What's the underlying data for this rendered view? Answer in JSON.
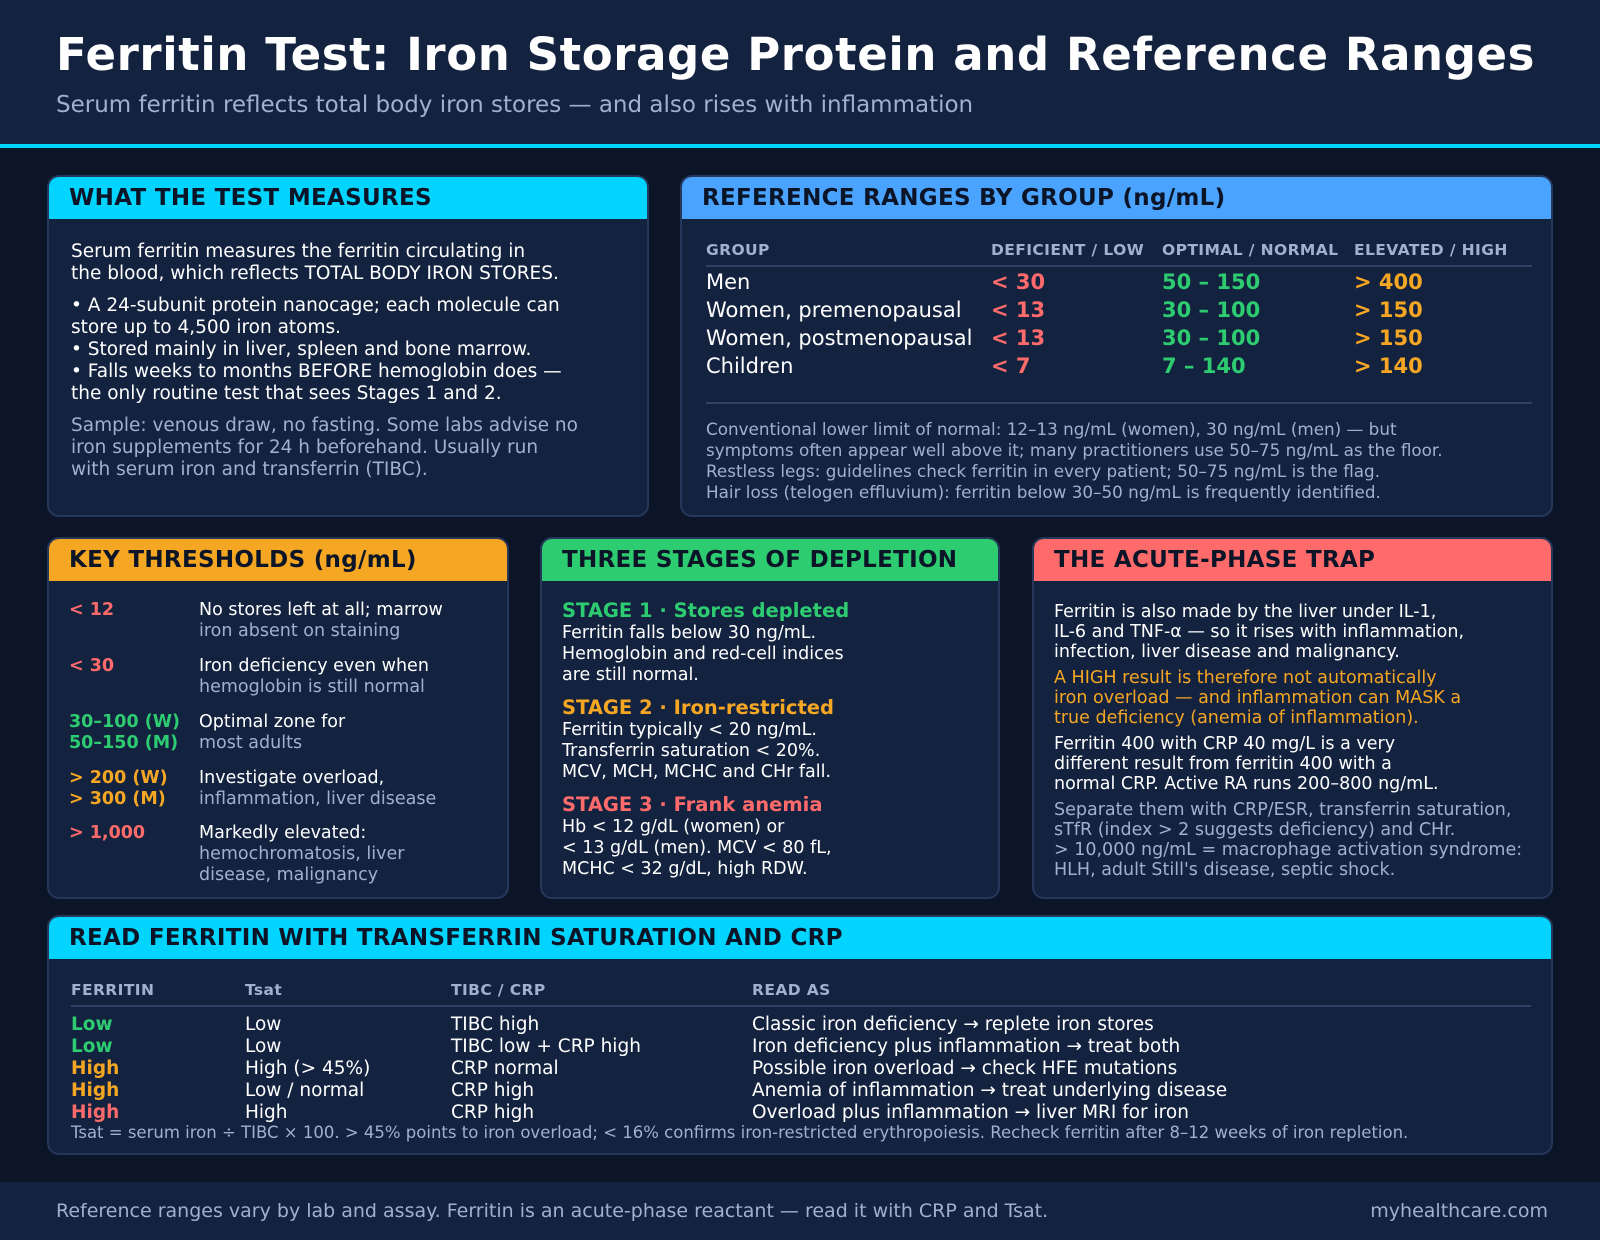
{
  "header": {
    "title": "Ferritin Test: Iron Storage Protein and Reference Ranges",
    "subtitle": "Serum ferritin reflects total body iron stores — and also rises with inflammation"
  },
  "measures": {
    "heading": "WHAT THE TEST MEASURES",
    "intro_1": "Serum ferritin measures the ferritin circulating in",
    "intro_2": "the blood, which reflects TOTAL BODY IRON STORES.",
    "bullets": [
      "• A 24-subunit protein nanocage; each molecule can",
      "store up to 4,500 iron atoms.",
      "• Stored mainly in liver, spleen and bone marrow.",
      "• Falls weeks to months BEFORE hemoglobin does —",
      "the only routine test that sees Stages 1 and 2."
    ],
    "sample": [
      "Sample: venous draw, no fasting. Some labs advise no",
      "iron supplements for 24 h beforehand. Usually run",
      "with serum iron and transferrin (TIBC)."
    ]
  },
  "ranges": {
    "heading": "REFERENCE RANGES BY GROUP (ng/mL)",
    "columns": [
      "GROUP",
      "DEFICIENT / LOW",
      "OPTIMAL / NORMAL",
      "ELEVATED / HIGH"
    ],
    "rows": [
      {
        "group": "Men",
        "low": "< 30",
        "normal": "50 – 150",
        "high": "> 400"
      },
      {
        "group": "Women, premenopausal",
        "low": "< 13",
        "normal": "30 – 100",
        "high": "> 150"
      },
      {
        "group": "Women, postmenopausal",
        "low": "< 13",
        "normal": "30 – 100",
        "high": "> 150"
      },
      {
        "group": "Children",
        "low": "< 7",
        "normal": "7 – 140",
        "high": "> 140"
      }
    ],
    "notes": [
      "Conventional lower limit of normal: 12–13 ng/mL (women), 30 ng/mL (men) — but",
      "symptoms often appear well above it; many practitioners use 50–75 ng/mL as the floor.",
      "Restless legs: guidelines check ferritin in every patient; 50–75 ng/mL is the flag.",
      "Hair loss (telogen effluvium): ferritin below 30–50 ng/mL is frequently identified."
    ]
  },
  "thresholds": {
    "heading": "KEY THRESHOLDS (ng/mL)",
    "items": [
      {
        "key_1": "< 12",
        "key_2": "",
        "desc_1": "No stores left at all; marrow",
        "desc_2": "iron absent on staining"
      },
      {
        "key_1": "< 30",
        "key_2": "",
        "desc_1": "Iron deficiency even when",
        "desc_2": "hemoglobin is still normal"
      },
      {
        "key_1": "30–100 (W)",
        "key_2": "50–150 (M)",
        "desc_1": "Optimal zone for",
        "desc_2": "most adults"
      },
      {
        "key_1": "> 200 (W)",
        "key_2": "> 300 (M)",
        "desc_1": "Investigate overload,",
        "desc_2": "inflammation, liver disease"
      },
      {
        "key_1": "> 1,000",
        "key_2": "",
        "desc_1": "Markedly elevated:",
        "desc_2": "hemochromatosis, liver",
        "desc_3": "disease, malignancy"
      }
    ]
  },
  "stages": {
    "heading": "THREE STAGES OF DEPLETION",
    "items": [
      {
        "title": "STAGE 1 · Stores depleted",
        "lines": [
          "Ferritin falls below 30 ng/mL.",
          "Hemoglobin and red-cell indices",
          "are still normal."
        ]
      },
      {
        "title": "STAGE 2 · Iron-restricted",
        "lines": [
          "Ferritin typically < 20 ng/mL.",
          "Transferrin saturation < 20%.",
          "MCV, MCH, MCHC and CHr fall."
        ]
      },
      {
        "title": "STAGE 3 · Frank anemia",
        "lines": [
          "Hb < 12 g/dL (women) or",
          "< 13 g/dL (men). MCV < 80 fL,",
          "MCHC < 32 g/dL, high RDW."
        ]
      }
    ]
  },
  "trap": {
    "heading": "THE ACUTE-PHASE TRAP",
    "p1": [
      "Ferritin is also made by the liver under IL-1,",
      "IL-6 and TNF-α — so it rises with inflammation,",
      "infection, liver disease and malignancy."
    ],
    "p2": [
      "A HIGH result is therefore not automatically",
      "iron overload — and inflammation can MASK a",
      "true deficiency (anemia of inflammation)."
    ],
    "p3": [
      "Ferritin 400 with CRP 40 mg/L is a very",
      "different result from ferritin 400 with a",
      "normal CRP. Active RA runs 200–800 ng/mL."
    ],
    "p4": [
      "Separate them with CRP/ESR, transferrin saturation,",
      "sTfR (index > 2 suggests deficiency) and CHr.",
      "> 10,000 ng/mL = macrophage activation syndrome:",
      "HLH, adult Still's disease, septic shock."
    ]
  },
  "combo": {
    "heading": "READ FERRITIN WITH TRANSFERRIN SATURATION AND CRP",
    "columns": [
      "FERRITIN",
      "Tsat",
      "TIBC / CRP",
      "READ AS"
    ],
    "rows": [
      {
        "ferritin": "Low",
        "tsat": "Low",
        "tibc": "TIBC high",
        "read": "Classic iron deficiency → replete iron stores"
      },
      {
        "ferritin": "Low",
        "tsat": "Low",
        "tibc": "TIBC low + CRP high",
        "read": "Iron deficiency plus inflammation → treat both"
      },
      {
        "ferritin": "High",
        "tsat": "High (> 45%)",
        "tibc": "CRP normal",
        "read": "Possible iron overload → check HFE mutations"
      },
      {
        "ferritin": "High",
        "tsat": "Low / normal",
        "tibc": "CRP high",
        "read": "Anemia of inflammation → treat underlying disease"
      },
      {
        "ferritin": "High",
        "tsat": "High",
        "tibc": "CRP high",
        "read": "Overload plus inflammation → liver MRI for iron"
      }
    ],
    "note": "Tsat = serum iron ÷ TIBC × 100. > 45% points to iron overload; < 16% confirms iron-restricted erythropoiesis. Recheck ferritin after 8–12 weeks of iron repletion."
  },
  "footer": {
    "disclaimer": "Reference ranges vary by lab and assay. Ferritin is an acute-phase reactant — read it with CRP and Tsat.",
    "site": "myhealthcare.com"
  },
  "colors": {
    "background": "#0b1527",
    "panel": "#13223f",
    "cyan": "#00d4ff",
    "blue": "#4aa3ff",
    "orange": "#f5a623",
    "green": "#2ecc71",
    "red": "#ff6b6b",
    "muted": "#9fb1cd"
  }
}
